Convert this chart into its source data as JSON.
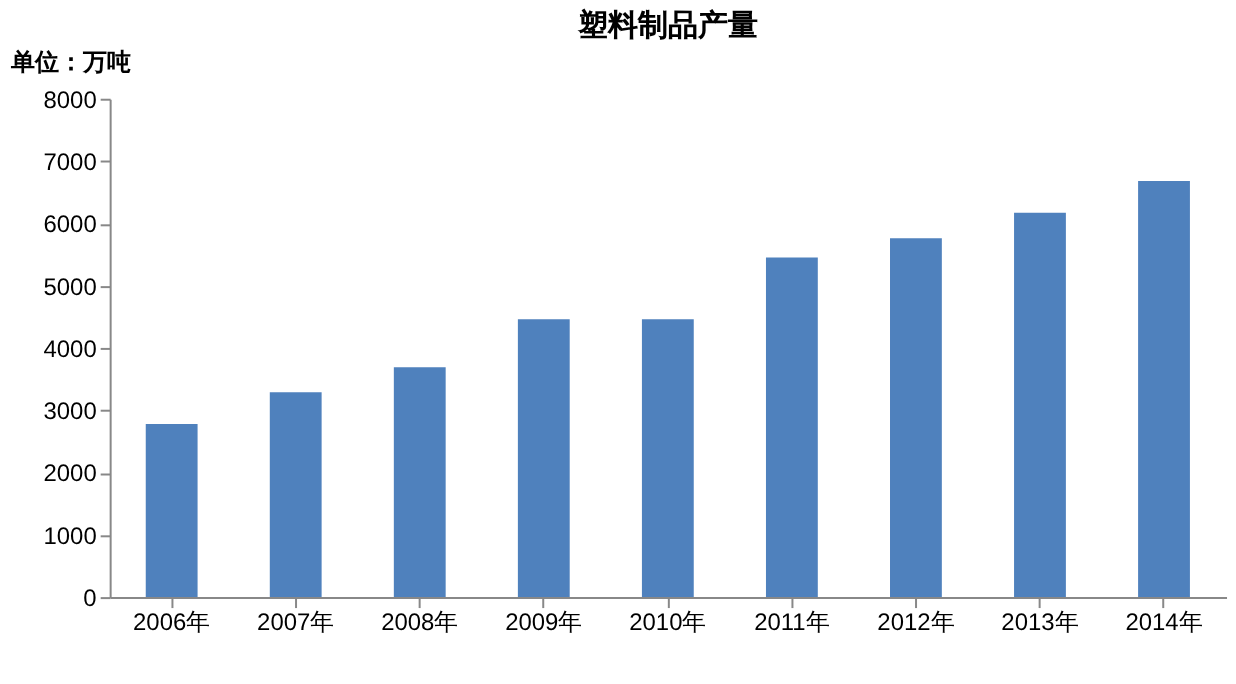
{
  "chart_data": {
    "type": "bar",
    "title": "塑料制品产量",
    "ylabel": "单位：万吨",
    "categories": [
      "2006年",
      "2007年",
      "2008年",
      "2009年",
      "2010年",
      "2011年",
      "2012年",
      "2013年",
      "2014年"
    ],
    "values": [
      2780,
      3290,
      3690,
      4460,
      4460,
      5450,
      5760,
      6170,
      6680
    ],
    "color": "#4f81bd",
    "ylim": [
      0,
      8000
    ],
    "yticks": [
      0,
      1000,
      2000,
      3000,
      4000,
      5000,
      6000,
      7000,
      8000
    ],
    "grid": false
  }
}
